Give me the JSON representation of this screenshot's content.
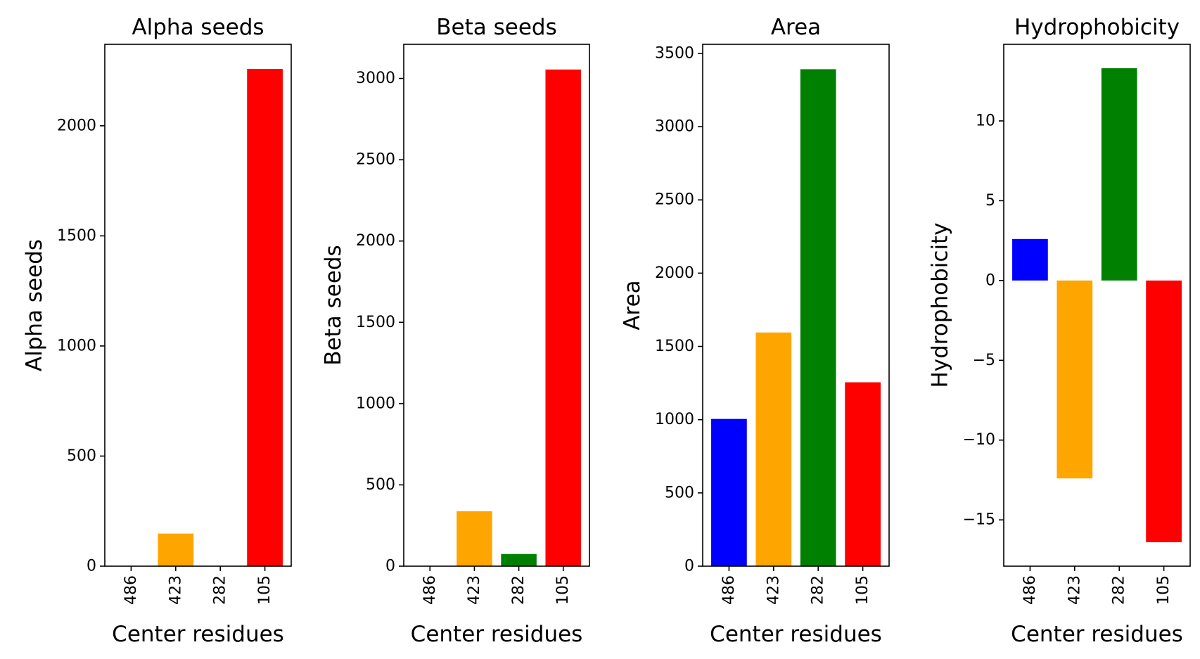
{
  "chart_data": [
    {
      "type": "bar",
      "title": "Alpha seeds",
      "xlabel": "Center residues",
      "ylabel": "Alpha seeds",
      "categories": [
        "486",
        "423",
        "282",
        "105"
      ],
      "values": [
        0,
        148,
        0,
        2258
      ],
      "colors": [
        "#0000ff",
        "#ffa500",
        "#008000",
        "#ff0000"
      ],
      "ylim": [
        0,
        2370
      ],
      "yticks": [
        0,
        500,
        1000,
        1500,
        2000
      ],
      "ytick_labels": [
        "0",
        "500",
        "1000",
        "1500",
        "2000"
      ],
      "grid": false
    },
    {
      "type": "bar",
      "title": "Beta seeds",
      "xlabel": "Center residues",
      "ylabel": "Beta seeds",
      "categories": [
        "486",
        "423",
        "282",
        "105"
      ],
      "values": [
        0,
        338,
        75,
        3055
      ],
      "colors": [
        "#0000ff",
        "#ffa500",
        "#008000",
        "#ff0000"
      ],
      "ylim": [
        0,
        3210
      ],
      "yticks": [
        0,
        500,
        1000,
        1500,
        2000,
        2500,
        3000
      ],
      "ytick_labels": [
        "0",
        "500",
        "1000",
        "1500",
        "2000",
        "2500",
        "3000"
      ],
      "grid": false
    },
    {
      "type": "bar",
      "title": "Area",
      "xlabel": "Center residues",
      "ylabel": "Area",
      "categories": [
        "486",
        "423",
        "282",
        "105"
      ],
      "values": [
        1005,
        1595,
        3392,
        1255
      ],
      "colors": [
        "#0000ff",
        "#ffa500",
        "#008000",
        "#ff0000"
      ],
      "ylim": [
        0,
        3562
      ],
      "yticks": [
        0,
        500,
        1000,
        1500,
        2000,
        2500,
        3000,
        3500
      ],
      "ytick_labels": [
        "0",
        "500",
        "1000",
        "1500",
        "2000",
        "2500",
        "3000",
        "3500"
      ],
      "grid": false
    },
    {
      "type": "bar",
      "title": "Hydrophobicity",
      "xlabel": "Center residues",
      "ylabel": "Hydrophobicity",
      "categories": [
        "486",
        "423",
        "282",
        "105"
      ],
      "values": [
        2.6,
        -12.4,
        13.3,
        -16.4
      ],
      "colors": [
        "#0000ff",
        "#ffa500",
        "#008000",
        "#ff0000"
      ],
      "ylim": [
        -17.9,
        14.8
      ],
      "yticks": [
        -15,
        -10,
        -5,
        0,
        5,
        10
      ],
      "ytick_labels": [
        "−15",
        "−10",
        "−5",
        "0",
        "5",
        "10"
      ],
      "grid": false
    }
  ]
}
